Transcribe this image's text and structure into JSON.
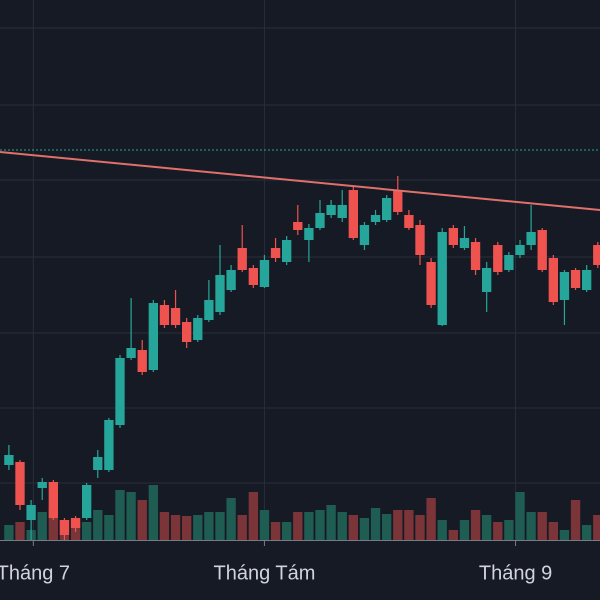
{
  "chart_data": {
    "type": "candlestick",
    "xlim": [
      -0.8,
      53.2
    ],
    "xticks": [
      {
        "value": 2.2,
        "label": "Tháng 7"
      },
      {
        "value": 23,
        "label": "Tháng Tám"
      },
      {
        "value": 45.6,
        "label": "Tháng 9"
      }
    ],
    "ylim": [
      0,
      540
    ],
    "yticks": [
      57,
      132,
      207,
      283,
      360,
      435,
      512
    ],
    "grid": true,
    "up_color": "#26a69a",
    "down_color": "#ef5350",
    "open": [
      75,
      78,
      20,
      52,
      58,
      20,
      22,
      22,
      70,
      70,
      115,
      182,
      190,
      170,
      235,
      232,
      218,
      200,
      220,
      228,
      250,
      292,
      272,
      253,
      292,
      278,
      318,
      300,
      312,
      325,
      322,
      350,
      295,
      318,
      320,
      350,
      325,
      315,
      278,
      215,
      312,
      292,
      298,
      248,
      295,
      270,
      285,
      295,
      310,
      282,
      240,
      270,
      250,
      295
    ],
    "high": [
      95,
      80,
      40,
      62,
      60,
      22,
      24,
      57,
      90,
      122,
      185,
      242,
      200,
      240,
      240,
      250,
      222,
      225,
      260,
      295,
      275,
      315,
      275,
      285,
      302,
      304,
      335,
      316,
      340,
      340,
      350,
      354,
      318,
      330,
      345,
      364,
      330,
      320,
      282,
      312,
      315,
      314,
      302,
      278,
      298,
      288,
      300,
      335,
      312,
      285,
      270,
      272,
      275,
      298
    ],
    "low": [
      70,
      30,
      0,
      40,
      20,
      0,
      8,
      20,
      62,
      68,
      112,
      180,
      165,
      168,
      212,
      212,
      192,
      198,
      218,
      225,
      248,
      268,
      252,
      252,
      278,
      275,
      305,
      278,
      310,
      322,
      318,
      300,
      290,
      315,
      318,
      325,
      310,
      275,
      232,
      214,
      292,
      290,
      265,
      228,
      265,
      268,
      282,
      290,
      268,
      235,
      215,
      250,
      248,
      272
    ],
    "close": [
      85,
      35,
      35,
      58,
      22,
      5,
      12,
      55,
      83,
      120,
      182,
      192,
      168,
      237,
      215,
      215,
      198,
      222,
      240,
      265,
      270,
      270,
      255,
      280,
      282,
      300,
      310,
      312,
      327,
      335,
      335,
      302,
      315,
      325,
      342,
      328,
      312,
      285,
      235,
      308,
      295,
      302,
      270,
      272,
      268,
      285,
      295,
      308,
      270,
      238,
      268,
      252,
      270,
      275
    ],
    "volume": [
      15,
      18,
      10,
      28,
      30,
      20,
      18,
      18,
      30,
      25,
      50,
      48,
      40,
      55,
      28,
      25,
      24,
      25,
      28,
      28,
      42,
      25,
      48,
      30,
      18,
      18,
      28,
      28,
      30,
      35,
      28,
      25,
      22,
      32,
      26,
      30,
      30,
      25,
      42,
      20,
      10,
      20,
      30,
      25,
      18,
      20,
      48,
      28,
      28,
      18,
      10,
      40,
      15,
      25
    ],
    "volume_lim": [
      0,
      100
    ],
    "volume_up_color": "#1f5c52",
    "volume_down_color": "#7b3539",
    "trendline": {
      "color": "#e0706a",
      "x": [
        -0.8,
        53.2
      ],
      "y": [
        388,
        330
      ]
    },
    "price_line": {
      "value": 390,
      "color": "#26a69a"
    }
  }
}
